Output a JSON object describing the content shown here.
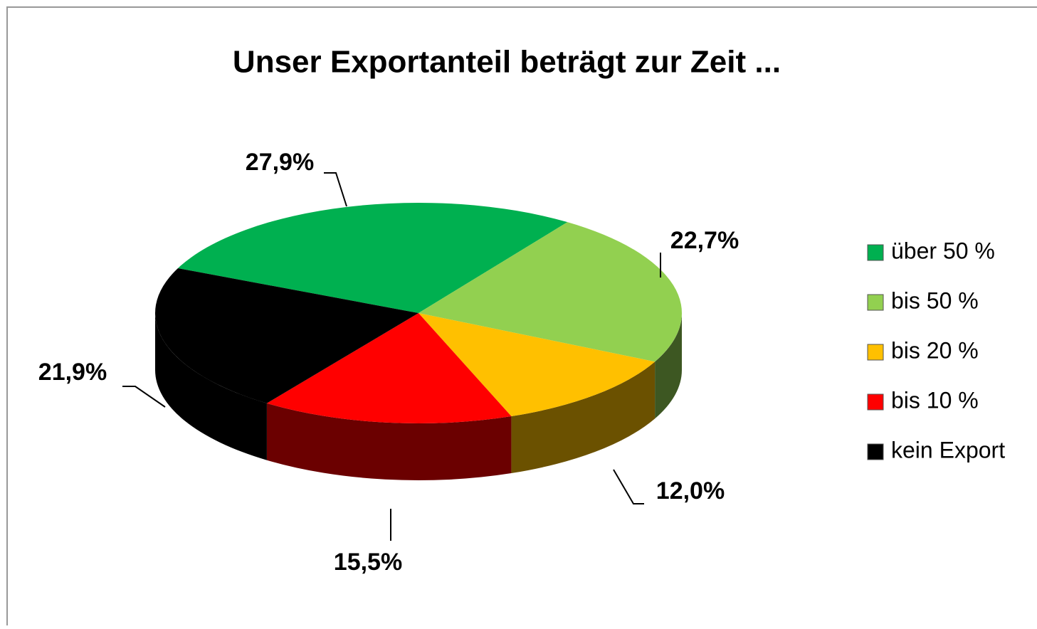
{
  "chart_data": {
    "type": "pie3d",
    "title": "Unser Exportanteil beträgt zur Zeit ...",
    "categories": [
      "über 50 %",
      "bis 50 %",
      "bis 20 %",
      "bis 10 %",
      "kein Export"
    ],
    "values": [
      27.9,
      22.7,
      12.0,
      15.5,
      21.9
    ],
    "value_labels": [
      "27,9%",
      "22,7%",
      "12,0%",
      "15,5%",
      "21,9%"
    ],
    "colors": [
      "#00b050",
      "#92d050",
      "#ffc000",
      "#ff0000",
      "#000000"
    ],
    "legend": "right"
  }
}
